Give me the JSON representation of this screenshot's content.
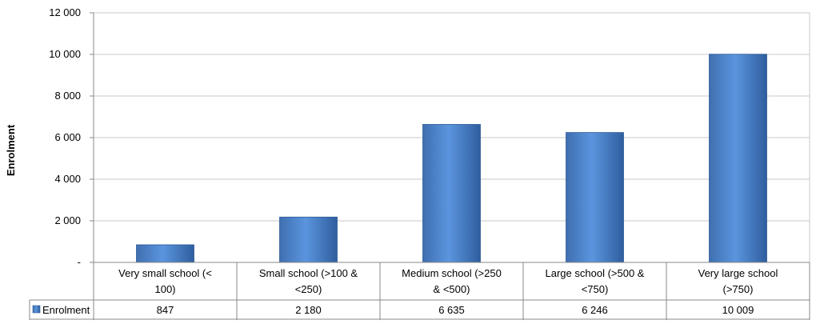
{
  "chart_data": {
    "type": "bar",
    "ylabel": "Enrolment",
    "ylim": [
      0,
      12000
    ],
    "yticks": [
      {
        "value": 0,
        "label": "-"
      },
      {
        "value": 2000,
        "label": "2 000"
      },
      {
        "value": 4000,
        "label": "4 000"
      },
      {
        "value": 6000,
        "label": "6 000"
      },
      {
        "value": 8000,
        "label": "8 000"
      },
      {
        "value": 10000,
        "label": "10 000"
      },
      {
        "value": 12000,
        "label": "12 000"
      }
    ],
    "categories": [
      [
        "Very small school (<",
        "100)"
      ],
      [
        "Small school (>100 &",
        "<250)"
      ],
      [
        "Medium school (>250",
        "& <500)"
      ],
      [
        "Large school (>500 &",
        "<750)"
      ],
      [
        "Very large school",
        "(>750)"
      ]
    ],
    "series": [
      {
        "name": "Enrolment",
        "values": [
          847,
          2180,
          6635,
          6246,
          10009
        ],
        "value_labels": [
          "847",
          "2 180",
          "6 635",
          "6 246",
          "10 009"
        ],
        "color": "#4a7ebf"
      }
    ],
    "grid": true,
    "legend": "data-table"
  }
}
